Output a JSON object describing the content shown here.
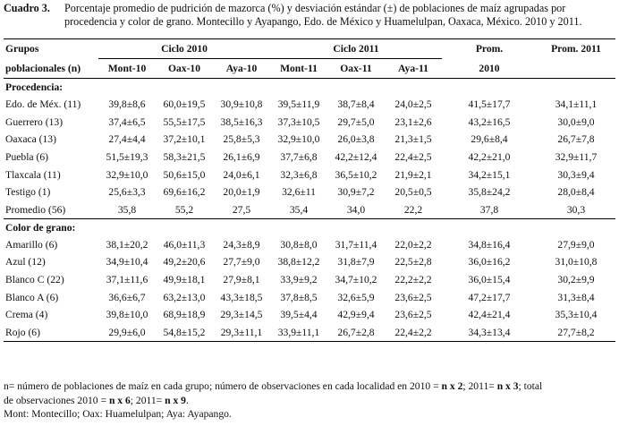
{
  "caption": {
    "label": "Cuadro 3.",
    "text_line1": "Porcentaje promedio de pudrición de mazorca (%) y desviación estándar (±) de poblaciones de maíz agrupadas por",
    "text_line2": "procedencia y color de grano. Montecillo y Ayapango, Edo. de México y Huamelulpan, Oaxaca, México. 2010 y 2011."
  },
  "header": {
    "group_col_line1": "Grupos",
    "group_col_line2": "poblacionales (n)",
    "cycle_2010": "Ciclo 2010",
    "cycle_2011": "Ciclo 2011",
    "prom_2010_line1": "Prom.",
    "prom_2010_line2": "2010",
    "prom_2011": "Prom. 2011",
    "sub": [
      "Mont-10",
      "Oax-10",
      "Aya-10",
      "Mont-11",
      "Oax-11",
      "Aya-11"
    ]
  },
  "sections": [
    {
      "title": "Procedencia:",
      "rows": [
        {
          "label": "Edo. de Méx. (11)",
          "values": [
            "39,8±8,6",
            "60,0±19,5",
            "30,9±10,8",
            "39,5±11,9",
            "38,7±8,4",
            "24,0±2,5",
            "41,5±17,7",
            "34,1±11,1"
          ]
        },
        {
          "label": "Guerrero (13)",
          "values": [
            "37,4±6,5",
            "55,5±17,5",
            "38,5±16,3",
            "37,3±10,5",
            "29,7±5,0",
            "23,1±2,6",
            "43,2±16,5",
            "30,0±9,0"
          ]
        },
        {
          "label": "Oaxaca (13)",
          "values": [
            "27,4±4,4",
            "37,2±10,1",
            "25,8±5,3",
            "32,9±10,0",
            "26,0±3,8",
            "21,3±1,5",
            "29,6±8,4",
            "26,7±7,8"
          ]
        },
        {
          "label": "Puebla (6)",
          "values": [
            "51,5±19,3",
            "58,3±21,5",
            "26,1±6,9",
            "37,7±6,8",
            "42,2±12,4",
            "22,4±2,5",
            "42,2±21,0",
            "32,9±11,7"
          ]
        },
        {
          "label": "Tlaxcala (11)",
          "values": [
            "32,9±10,0",
            "50,6±15,0",
            "24,0±6,1",
            "32,3±6,8",
            "36,5±10,2",
            "21,9±2,1",
            "34,2±15,1",
            "30,3±9,4"
          ]
        },
        {
          "label": "Testigo (1)",
          "values": [
            "25,6±3,3",
            "69,6±16,2",
            "20,0±1,9",
            "32,6±11",
            "30,9±7,2",
            "20,5±0,5",
            "35,8±24,2",
            "28,0±8,4"
          ]
        },
        {
          "label": "Promedio (56)",
          "values": [
            "35,8",
            "55,2",
            "27,5",
            "35,4",
            "34,0",
            "22,2",
            "37,8",
            "30,3"
          ]
        }
      ]
    },
    {
      "title": "Color de grano:",
      "rows": [
        {
          "label": "Amarillo (6)",
          "values": [
            "38,1±20,2",
            "46,0±11,3",
            "24,3±8,9",
            "30,8±8,0",
            "31,7±11,4",
            "22,0±2,2",
            "34,8±16,4",
            "27,9±9,0"
          ]
        },
        {
          "label": "Azul (12)",
          "values": [
            "34,9±10,4",
            "49,2±20,6",
            "27,7±9,0",
            "38,8±12,2",
            "31,8±7,9",
            "22,5±2,8",
            "36,0±16,2",
            "31,0±10,8"
          ]
        },
        {
          "label": "Blanco C (22)",
          "values": [
            "37,1±11,6",
            "49,9±18,1",
            "27,9±8,1",
            "33,9±9,2",
            "34,7±10,2",
            "22,2±2,2",
            "36,0±15,4",
            "30,2±9,9"
          ]
        },
        {
          "label": "Blanco A (6)",
          "values": [
            "36,6±6,7",
            "63,2±13,0",
            "43,3±18,5",
            "37,8±8,5",
            "32,6±5,9",
            "23,6±2,5",
            "47,2±17,7",
            "31,3±8,4"
          ]
        },
        {
          "label": "Crema (4)",
          "values": [
            "39,8±10,0",
            "68,9±18,9",
            "29,3±14,5",
            "39,5±4,4",
            "42,9±9,4",
            "23,6±2,5",
            "42,4±21,4",
            "35,3±10,4"
          ]
        },
        {
          "label": "Rojo (6)",
          "values": [
            "29,9±6,0",
            "54,8±15,2",
            "29,3±11,1",
            "33,9±11,1",
            "26,7±2,8",
            "22,4±2,2",
            "34,3±13,4",
            "27,7±8,2"
          ]
        }
      ]
    }
  ],
  "notes": {
    "line1_a": "n= número de poblaciones de maíz en cada grupo; número de observaciones en cada localidad en 2010 = ",
    "line1_b": "n x 2",
    "line1_c": ";  2011= ",
    "line1_d": "n x 3",
    "line1_e": "; total",
    "line2_a": "de observaciones 2010 = ",
    "line2_b": "n x 6",
    "line2_c": "; 2011= ",
    "line2_d": "n x 9",
    "line2_e": ".",
    "line3": "Mont: Montecillo; Oax: Huamelulpan; Aya: Ayapango."
  }
}
